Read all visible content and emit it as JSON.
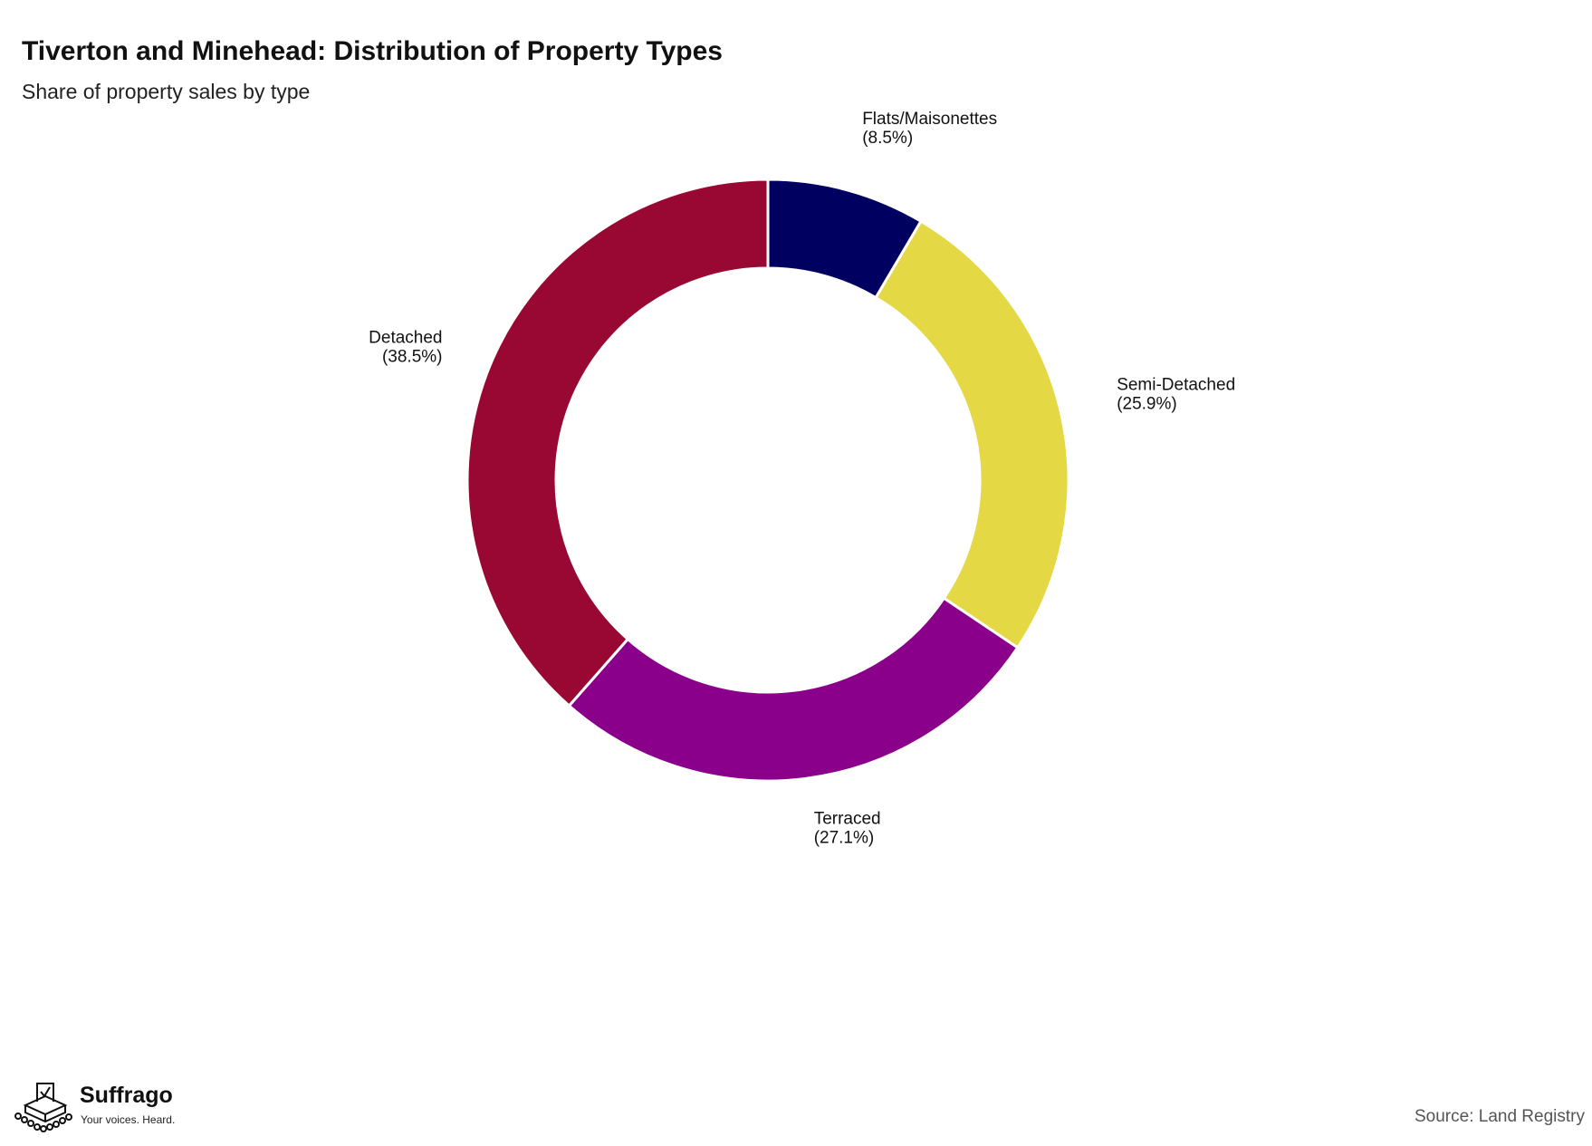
{
  "header": {
    "title": "Tiverton and Minehead: Distribution of Property Types",
    "subtitle": "Share of property sales by type"
  },
  "chart_data": {
    "type": "pie",
    "style": "donut",
    "title": "Tiverton and Minehead: Distribution of Property Types",
    "subtitle": "Share of property sales by type",
    "slices": [
      {
        "name": "Flats/Maisonettes",
        "value": 8.5,
        "label": "(8.5%)",
        "color": "#000060"
      },
      {
        "name": "Semi-Detached",
        "value": 25.9,
        "label": "(25.9%)",
        "color": "#E4D844"
      },
      {
        "name": "Terraced",
        "value": 27.1,
        "label": "(27.1%)",
        "color": "#8B008B"
      },
      {
        "name": "Detached",
        "value": 38.5,
        "label": "(38.5%)",
        "color": "#990833"
      }
    ],
    "start_angle": "12 o'clock",
    "direction": "clockwise",
    "legend": "none"
  },
  "footer": {
    "brand_name": "Suffrago",
    "brand_tagline": "Your voices. Heard.",
    "source": "Source: Land Registry"
  }
}
